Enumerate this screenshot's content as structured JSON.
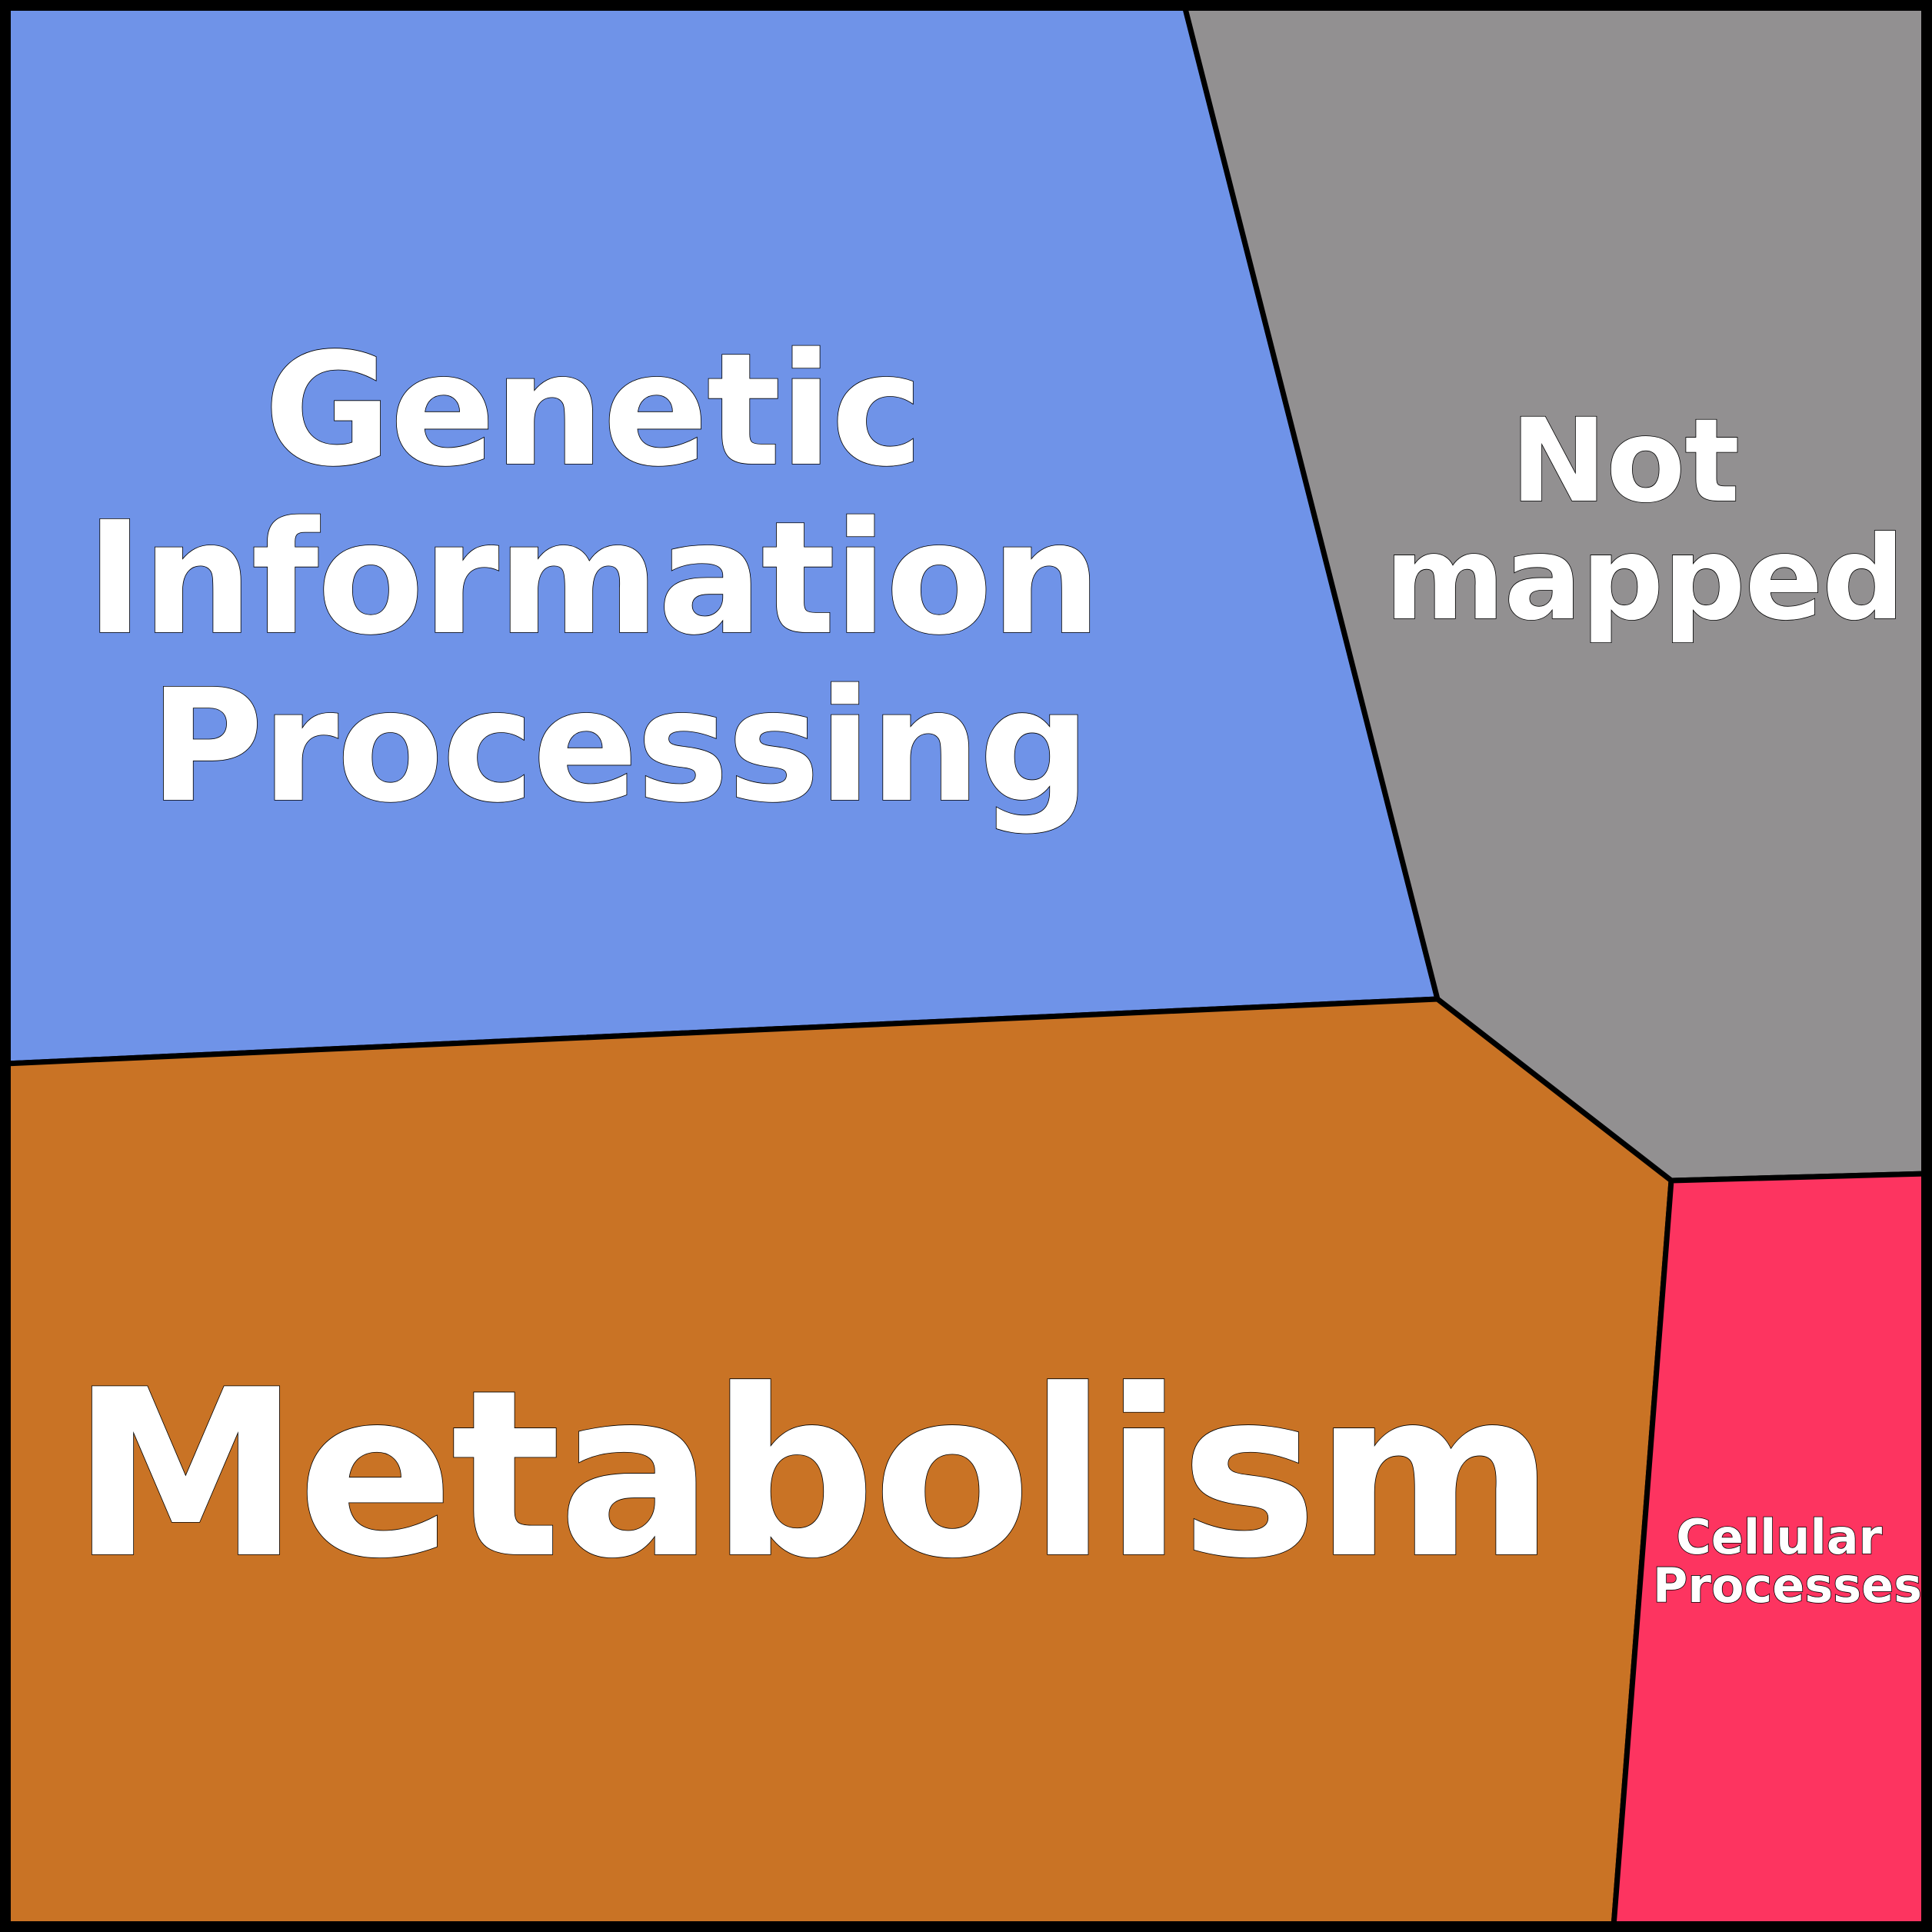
{
  "diagram": {
    "type": "voronoi-treemap",
    "cells": [
      {
        "id": "genetic-information-processing",
        "lines": [
          "Genetic",
          "Information",
          "Processing"
        ],
        "color": "#6f93e8"
      },
      {
        "id": "not-mapped",
        "lines": [
          "Not",
          "mapped"
        ],
        "color": "#929091"
      },
      {
        "id": "metabolism",
        "lines": [
          "Metabolism"
        ],
        "color": "#c97325"
      },
      {
        "id": "cellular-processes",
        "lines": [
          "Cellular",
          "Processes"
        ],
        "color": "#fd3460"
      }
    ],
    "border_color": "#000000",
    "label_color": "#ffffff"
  }
}
